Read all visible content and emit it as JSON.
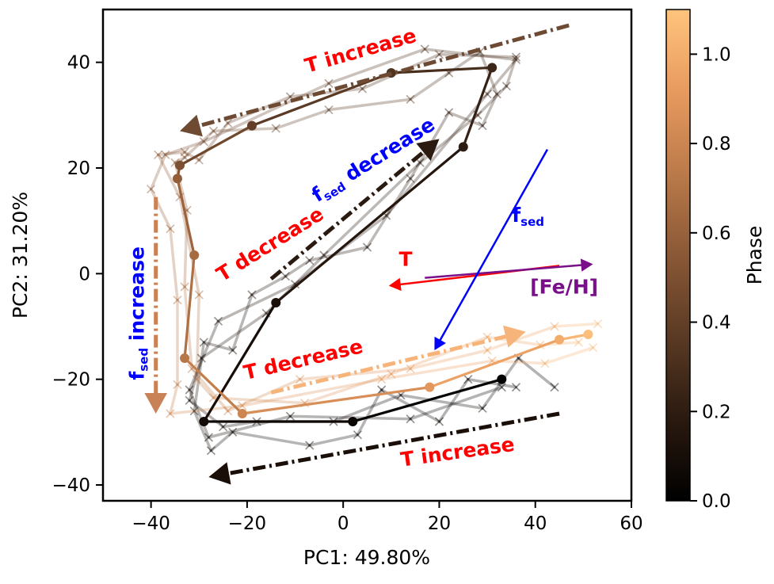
{
  "chart_data": {
    "type": "line",
    "xlabel": "PC1: 49.80%",
    "ylabel": "PC2: 31.20%",
    "xlim": [
      -50,
      60
    ],
    "ylim": [
      -43,
      50
    ],
    "xticks": [
      -40,
      -20,
      0,
      20,
      40,
      60
    ],
    "yticks": [
      -40,
      -20,
      0,
      20,
      40
    ],
    "xtick_labels": [
      "−40",
      "−20",
      "0",
      "20",
      "40",
      "60"
    ],
    "ytick_labels": [
      "−40",
      "−20",
      "0",
      "20",
      "40"
    ],
    "grid": false,
    "colorbar": {
      "label": "Phase",
      "range": [
        0,
        1.1
      ],
      "ticks": [
        0.0,
        0.2,
        0.4,
        0.6,
        0.8,
        1.0
      ],
      "tick_labels": [
        "0.0",
        "0.2",
        "0.4",
        "0.6",
        "0.8",
        "1.0"
      ],
      "colors": [
        "#000000",
        "#2a1a10",
        "#5a3a24",
        "#8a5836",
        "#bb7a4a",
        "#e89a5e",
        "#ffc47e"
      ]
    },
    "main_track": {
      "points": [
        {
          "x": 33,
          "y": -20,
          "phase": 0.0
        },
        {
          "x": 2,
          "y": -28,
          "phase": 0.05
        },
        {
          "x": -29,
          "y": -28,
          "phase": 0.08
        },
        {
          "x": -14,
          "y": -5.5,
          "phase": 0.12
        },
        {
          "x": 25,
          "y": 24,
          "phase": 0.2
        },
        {
          "x": 31,
          "y": 39,
          "phase": 0.25
        },
        {
          "x": 10,
          "y": 38,
          "phase": 0.33
        },
        {
          "x": -19,
          "y": 28,
          "phase": 0.4
        },
        {
          "x": -34,
          "y": 20.5,
          "phase": 0.5
        },
        {
          "x": -34.5,
          "y": 18,
          "phase": 0.58
        },
        {
          "x": -31,
          "y": 3.5,
          "phase": 0.65
        },
        {
          "x": -33,
          "y": -16,
          "phase": 0.72
        },
        {
          "x": -21,
          "y": -26.5,
          "phase": 0.8
        },
        {
          "x": 18,
          "y": -21.5,
          "phase": 0.9
        },
        {
          "x": 45,
          "y": -12.5,
          "phase": 1.0
        },
        {
          "x": 51,
          "y": -11.5,
          "phase": 1.08
        }
      ]
    },
    "shadow_tracks": [
      {
        "points": [
          {
            "x": 36,
            "y": -21.5,
            "phase": 0.0
          },
          {
            "x": 26,
            "y": -20,
            "phase": 0.02
          },
          {
            "x": 20,
            "y": -28,
            "phase": 0.04
          },
          {
            "x": 8,
            "y": -22,
            "phase": 0.05
          },
          {
            "x": 3,
            "y": -30.5,
            "phase": 0.06
          },
          {
            "x": -7,
            "y": -32.5,
            "phase": 0.07
          },
          {
            "x": -23,
            "y": -30,
            "phase": 0.08
          },
          {
            "x": -27.5,
            "y": -33.5,
            "phase": 0.08
          },
          {
            "x": -31,
            "y": -26,
            "phase": 0.09
          },
          {
            "x": -29,
            "y": -13,
            "phase": 0.1
          },
          {
            "x": -23,
            "y": -14.5,
            "phase": 0.1
          },
          {
            "x": -19,
            "y": -4,
            "phase": 0.11
          },
          {
            "x": -12,
            "y": -0.5,
            "phase": 0.12
          },
          {
            "x": -7,
            "y": 2.5,
            "phase": 0.13
          },
          {
            "x": 5,
            "y": 5,
            "phase": 0.15
          },
          {
            "x": 14,
            "y": 18,
            "phase": 0.18
          },
          {
            "x": 22,
            "y": 30.5,
            "phase": 0.2
          },
          {
            "x": 29,
            "y": 28,
            "phase": 0.22
          },
          {
            "x": 32,
            "y": 34,
            "phase": 0.24
          },
          {
            "x": 28.5,
            "y": 42,
            "phase": 0.26
          },
          {
            "x": 22,
            "y": 38,
            "phase": 0.3
          },
          {
            "x": 14,
            "y": 33,
            "phase": 0.33
          },
          {
            "x": -3,
            "y": 31,
            "phase": 0.36
          },
          {
            "x": -14,
            "y": 27.5,
            "phase": 0.4
          },
          {
            "x": -27,
            "y": 27,
            "phase": 0.45
          },
          {
            "x": -33,
            "y": 22,
            "phase": 0.5
          },
          {
            "x": -35,
            "y": 21,
            "phase": 0.55
          },
          {
            "x": -32.5,
            "y": 12,
            "phase": 0.6
          },
          {
            "x": -33,
            "y": -2.5,
            "phase": 0.68
          },
          {
            "x": -31.5,
            "y": -18,
            "phase": 0.75
          },
          {
            "x": -24,
            "y": -26,
            "phase": 0.8
          },
          {
            "x": -9,
            "y": -20,
            "phase": 0.85
          },
          {
            "x": 14,
            "y": -18,
            "phase": 0.9
          },
          {
            "x": 30,
            "y": -14.5,
            "phase": 0.95
          },
          {
            "x": 44,
            "y": -10,
            "phase": 1.0
          },
          {
            "x": 53,
            "y": -9.5,
            "phase": 1.05
          }
        ]
      },
      {
        "points": [
          {
            "x": 44,
            "y": -21.5,
            "phase": 0.02
          },
          {
            "x": 36.5,
            "y": -16,
            "phase": 0.03
          },
          {
            "x": 29,
            "y": -25.5,
            "phase": 0.04
          },
          {
            "x": 12,
            "y": -23,
            "phase": 0.05
          },
          {
            "x": -2,
            "y": -28,
            "phase": 0.06
          },
          {
            "x": -18,
            "y": -28,
            "phase": 0.07
          },
          {
            "x": -25,
            "y": -29,
            "phase": 0.08
          },
          {
            "x": -32,
            "y": -24,
            "phase": 0.09
          },
          {
            "x": -29.5,
            "y": -16,
            "phase": 0.1
          },
          {
            "x": -16,
            "y": -7.5,
            "phase": 0.12
          },
          {
            "x": -4,
            "y": 3.5,
            "phase": 0.14
          },
          {
            "x": 16,
            "y": 21,
            "phase": 0.18
          },
          {
            "x": 28,
            "y": 30,
            "phase": 0.22
          },
          {
            "x": 34,
            "y": 35.5,
            "phase": 0.25
          },
          {
            "x": 36,
            "y": 41,
            "phase": 0.27
          },
          {
            "x": 20,
            "y": 41.5,
            "phase": 0.3
          },
          {
            "x": 4,
            "y": 35,
            "phase": 0.34
          },
          {
            "x": -11,
            "y": 33.5,
            "phase": 0.38
          },
          {
            "x": -24,
            "y": 28.5,
            "phase": 0.43
          },
          {
            "x": -30,
            "y": 21.5,
            "phase": 0.5
          },
          {
            "x": -33,
            "y": 23,
            "phase": 0.52
          },
          {
            "x": -38.5,
            "y": 22.5,
            "phase": 0.55
          },
          {
            "x": -34,
            "y": 14.5,
            "phase": 0.6
          },
          {
            "x": -30,
            "y": -4,
            "phase": 0.68
          },
          {
            "x": -30.5,
            "y": -20,
            "phase": 0.76
          },
          {
            "x": -27,
            "y": -23.5,
            "phase": 0.8
          },
          {
            "x": -8,
            "y": -24.5,
            "phase": 0.85
          },
          {
            "x": 10,
            "y": -19,
            "phase": 0.9
          },
          {
            "x": 30,
            "y": -12,
            "phase": 0.96
          },
          {
            "x": 41,
            "y": -13.5,
            "phase": 1.0
          },
          {
            "x": 49,
            "y": -13,
            "phase": 1.05
          }
        ]
      },
      {
        "points": [
          {
            "x": 33,
            "y": -21.5,
            "phase": 0.01
          },
          {
            "x": 14,
            "y": -27.5,
            "phase": 0.05
          },
          {
            "x": -11,
            "y": -27,
            "phase": 0.07
          },
          {
            "x": -28,
            "y": -31,
            "phase": 0.08
          },
          {
            "x": -32,
            "y": -22,
            "phase": 0.09
          },
          {
            "x": -26,
            "y": -9,
            "phase": 0.11
          },
          {
            "x": -10,
            "y": -2,
            "phase": 0.13
          },
          {
            "x": 9,
            "y": 11,
            "phase": 0.16
          },
          {
            "x": 30,
            "y": 34,
            "phase": 0.23
          },
          {
            "x": 36,
            "y": 40.5,
            "phase": 0.26
          },
          {
            "x": 17,
            "y": 42.5,
            "phase": 0.3
          },
          {
            "x": -3,
            "y": 36,
            "phase": 0.35
          },
          {
            "x": -29,
            "y": 25,
            "phase": 0.45
          },
          {
            "x": -37,
            "y": 22.5,
            "phase": 0.52
          },
          {
            "x": -40,
            "y": 16,
            "phase": 0.58
          },
          {
            "x": -36,
            "y": 8.5,
            "phase": 0.62
          },
          {
            "x": -34.5,
            "y": -5,
            "phase": 0.68
          },
          {
            "x": -34.5,
            "y": -21,
            "phase": 0.75
          },
          {
            "x": -36,
            "y": -26.5,
            "phase": 0.8
          },
          {
            "x": -21,
            "y": -25,
            "phase": 0.84
          },
          {
            "x": 8,
            "y": -20,
            "phase": 0.9
          },
          {
            "x": 31,
            "y": -16.5,
            "phase": 0.96
          },
          {
            "x": 42,
            "y": -17,
            "phase": 1.0
          },
          {
            "x": 52,
            "y": -14,
            "phase": 1.05
          }
        ]
      }
    ],
    "vectors": [
      {
        "label": "T",
        "color": "#ff0000",
        "from": [
          45,
          1.5
        ],
        "to": [
          9.5,
          -2.3
        ],
        "label_at": [
          13,
          1.5
        ]
      },
      {
        "label": "[Fe/H]",
        "color": "#7a0f8a",
        "from": [
          17,
          -0.8
        ],
        "to": [
          52,
          1.8
        ],
        "label_at": [
          46,
          -3.8
        ]
      },
      {
        "label_main": "f",
        "label_sub": "sed",
        "color": "#0000ff",
        "from": [
          42.5,
          23.5
        ],
        "to": [
          19,
          -14.5
        ],
        "label_at": [
          38.5,
          9.8
        ]
      }
    ],
    "arrows": [
      {
        "color": "#6e4a32",
        "from": [
          47,
          47
        ],
        "to": [
          -34,
          27
        ]
      },
      {
        "color": "#2a1a10",
        "from": [
          -15,
          -1
        ],
        "to": [
          20,
          25.5
        ]
      },
      {
        "color": "#c98255",
        "from": [
          -39,
          14.5
        ],
        "to": [
          -39,
          -26.5
        ]
      },
      {
        "color": "#f7b47a",
        "from": [
          -15,
          -22.5
        ],
        "to": [
          38,
          -11
        ]
      },
      {
        "color": "#1a0e08",
        "from": [
          45,
          -26.5
        ],
        "to": [
          -28,
          -38.5
        ]
      }
    ],
    "annotations": [
      {
        "text": "T increase",
        "color": "#ff0000",
        "at": [
          4,
          41
        ],
        "rotation": -16
      },
      {
        "text": "T decrease",
        "color": "#ff0000",
        "at": [
          -14.5,
          4.5
        ],
        "rotation": -32
      },
      {
        "main": "f",
        "sub": "sed",
        "rest": " decrease",
        "color": "#0000ff",
        "at": [
          7,
          20.5
        ],
        "rotation": -32
      },
      {
        "main": "f",
        "sub": "sed",
        "rest": " increase",
        "color": "#0000ff",
        "at": [
          -41.5,
          -7.5
        ],
        "rotation": -90
      },
      {
        "text": "T decrease",
        "color": "#ff0000",
        "at": [
          -8,
          -17.5
        ],
        "rotation": -13
      },
      {
        "text": "T increase",
        "color": "#ff0000",
        "at": [
          24,
          -35
        ],
        "rotation": -8
      }
    ]
  }
}
